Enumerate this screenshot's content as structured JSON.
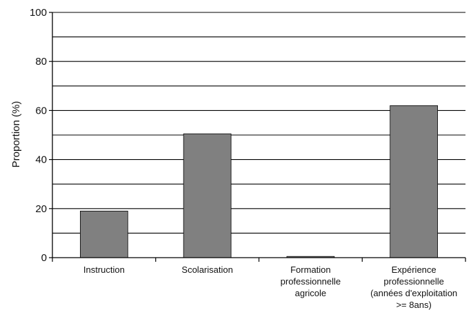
{
  "chart_data": {
    "type": "bar",
    "title": "",
    "xlabel": "",
    "ylabel": "Proportion (%)",
    "ylim": [
      0,
      100
    ],
    "yticks": [
      0,
      20,
      40,
      60,
      80,
      100
    ],
    "minor_gridlines": [
      10,
      30,
      50,
      70,
      90
    ],
    "grid": true,
    "legend": "none",
    "categories": [
      [
        "Instruction"
      ],
      [
        "Scolarisation"
      ],
      [
        "Formation",
        "professionnelle",
        "agricole"
      ],
      [
        "Expérience",
        "professionnelle",
        "(années d'exploitation",
        ">= 8ans)"
      ]
    ],
    "values": [
      19,
      50.5,
      0.5,
      62
    ],
    "colors": {
      "bar": "#808080",
      "bar_edge": "#000000",
      "grid": "#000000",
      "axis": "#000000"
    }
  }
}
